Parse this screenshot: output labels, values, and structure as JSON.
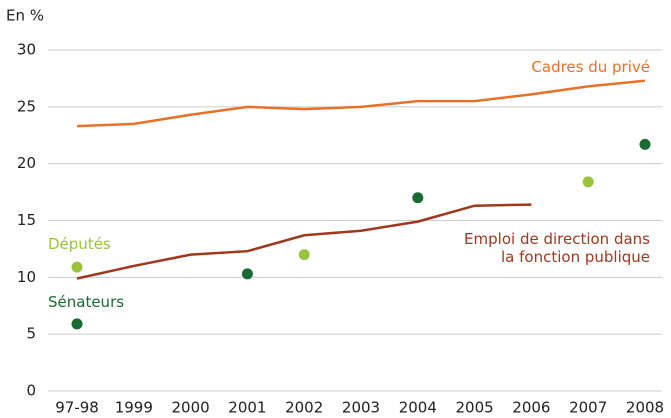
{
  "chart_data": {
    "type": "line",
    "y_label": "En %",
    "categories": [
      "97-98",
      "1999",
      "2000",
      "2001",
      "2002",
      "2003",
      "2004",
      "2005",
      "2006",
      "2007",
      "2008"
    ],
    "ylim": [
      0,
      30
    ],
    "yticks": [
      0,
      5,
      10,
      15,
      20,
      25,
      30
    ],
    "grid": true,
    "series": [
      {
        "name": "Cadres du privé",
        "color": "#e8712a",
        "style": "line",
        "values": [
          23.3,
          23.5,
          24.3,
          25,
          24.8,
          25,
          25.5,
          25.5,
          26.1,
          26.8,
          27.3
        ]
      },
      {
        "name": "Emploi de direction dans la fonction publique",
        "color": "#a0381e",
        "style": "line",
        "values": [
          9.9,
          11,
          12,
          12.3,
          13.7,
          14.1,
          14.9,
          16.3,
          16.4,
          null,
          null
        ]
      },
      {
        "name": "Députés",
        "color": "#9ac43c",
        "style": "dots",
        "values": [
          10.9,
          null,
          null,
          null,
          12,
          null,
          null,
          null,
          null,
          18.4,
          null
        ]
      },
      {
        "name": "Sénateurs",
        "color": "#1a6b32",
        "style": "dots",
        "values": [
          5.9,
          null,
          null,
          10.3,
          null,
          null,
          17,
          null,
          null,
          null,
          21.7
        ]
      }
    ]
  }
}
